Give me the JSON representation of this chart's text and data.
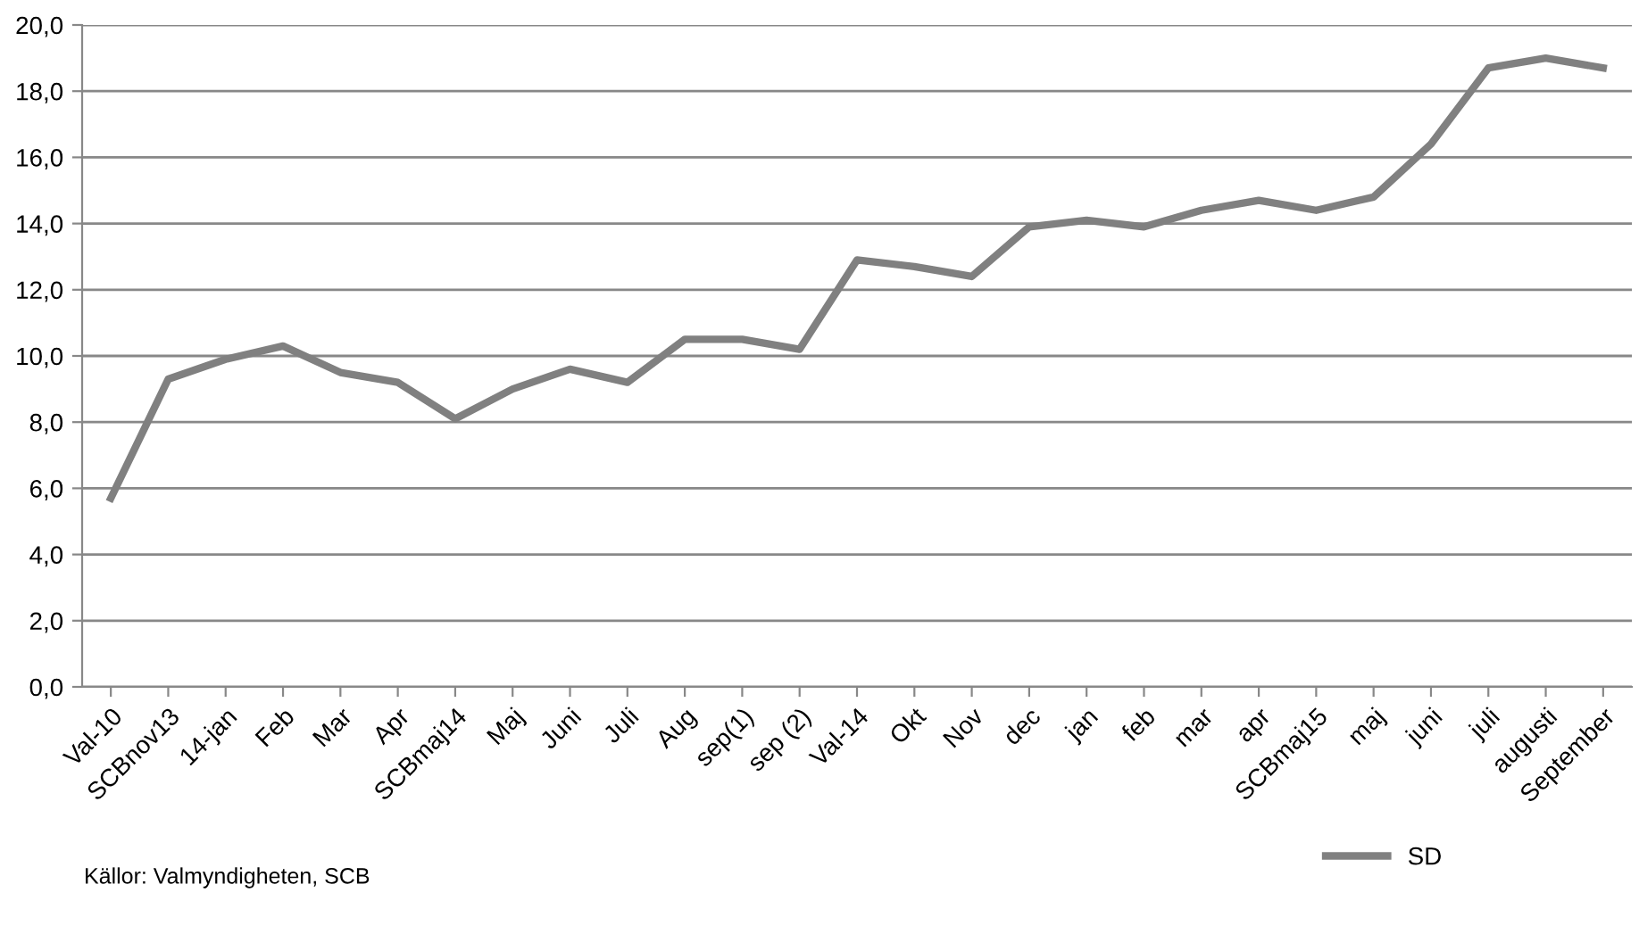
{
  "chart_data": {
    "type": "line",
    "categories": [
      "Val-10",
      "SCBnov13",
      "14-jan",
      "Feb",
      "Mar",
      "Apr",
      "SCBmaj14",
      "Maj",
      "Juni",
      "Juli",
      "Aug",
      "sep(1)",
      "sep (2)",
      "Val-14",
      "Okt",
      "Nov",
      "dec",
      "jan",
      "feb",
      "mar",
      "apr",
      "SCBmaj15",
      "maj",
      "juni",
      "juli",
      "augusti",
      "September"
    ],
    "series": [
      {
        "name": "SD",
        "color": "#808080",
        "values": [
          5.7,
          9.3,
          9.9,
          10.3,
          9.5,
          9.2,
          8.1,
          9.0,
          9.6,
          9.2,
          10.5,
          10.5,
          10.2,
          12.9,
          12.7,
          12.4,
          13.9,
          14.1,
          13.9,
          14.4,
          14.7,
          14.4,
          14.8,
          16.4,
          18.7,
          19.0,
          18.7
        ]
      }
    ],
    "ylim": [
      0,
      20
    ],
    "yticks": [
      {
        "value": 0,
        "label": "0,0"
      },
      {
        "value": 2,
        "label": "2,0"
      },
      {
        "value": 4,
        "label": "4,0"
      },
      {
        "value": 6,
        "label": "6,0"
      },
      {
        "value": 8,
        "label": "8,0"
      },
      {
        "value": 10,
        "label": "10,0"
      },
      {
        "value": 12,
        "label": "12,0"
      },
      {
        "value": 14,
        "label": "14,0"
      },
      {
        "value": 16,
        "label": "16,0"
      },
      {
        "value": 18,
        "label": "18,0"
      },
      {
        "value": 20,
        "label": "20,0"
      }
    ],
    "grid": "y",
    "legend": "bottom right",
    "marker": "none",
    "line_style": "solid",
    "annotations": [
      "Källor: Valmyndigheten, SCB"
    ]
  }
}
